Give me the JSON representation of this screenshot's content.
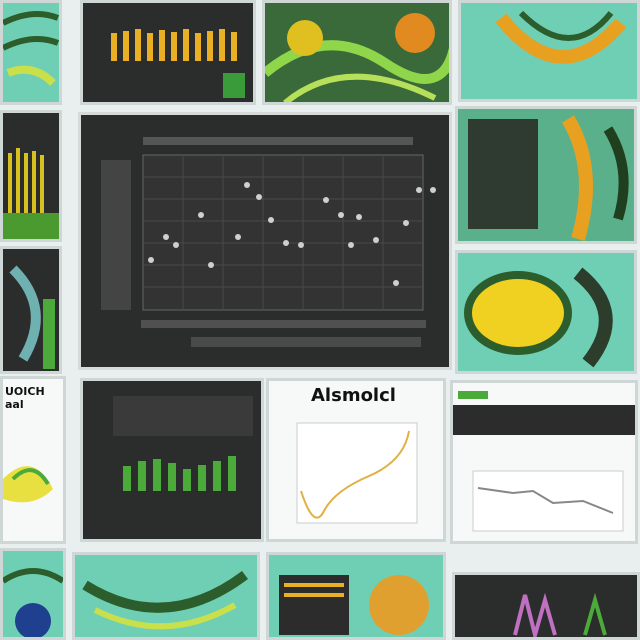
{
  "panels": [
    {
      "title": "UOICH aal"
    },
    {
      "title": "Alsmolcl"
    }
  ]
}
